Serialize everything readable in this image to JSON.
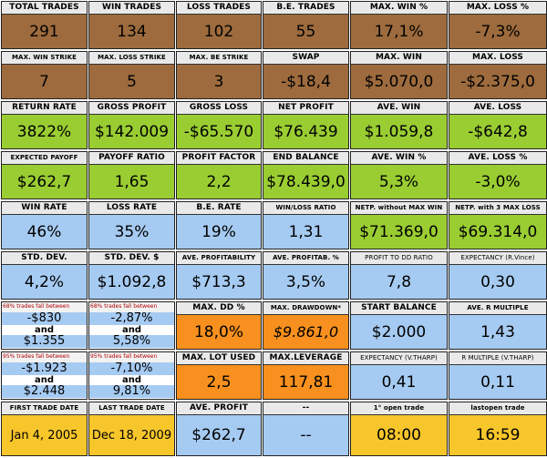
{
  "row1": [
    {
      "label": "TOTAL TRADES",
      "value": "291"
    },
    {
      "label": "WIN TRADES",
      "value": "134"
    },
    {
      "label": "LOSS TRADES",
      "value": "102"
    },
    {
      "label": "B.E. TRADES",
      "value": "55"
    },
    {
      "label": "MAX. WIN %",
      "value": "17,1%"
    },
    {
      "label": "MAX. LOSS %",
      "value": "-7,3%"
    }
  ],
  "row2": [
    {
      "label": "MAX. WIN STRIKE",
      "value": "7"
    },
    {
      "label": "MAX. LOSS STRIKE",
      "value": "5"
    },
    {
      "label": "MAX. BE STRIKE",
      "value": "3"
    },
    {
      "label": "SWAP",
      "value": "-$18,4"
    },
    {
      "label": "MAX. WIN",
      "value": "$5.070,0"
    },
    {
      "label": "MAX. LOSS",
      "value": "-$2.375,0"
    }
  ],
  "row3": [
    {
      "label": "RETURN RATE",
      "value": "3822%"
    },
    {
      "label": "GROSS PROFIT",
      "value": "$142.009"
    },
    {
      "label": "GROSS LOSS",
      "value": "-$65.570"
    },
    {
      "label": "NET PROFIT",
      "value": "$76.439"
    },
    {
      "label": "AVE. WIN",
      "value": "$1.059,8"
    },
    {
      "label": "AVE. LOSS",
      "value": "-$642,8"
    }
  ],
  "row4": [
    {
      "label": "EXPECTED PAYOFF",
      "value": "$262,7"
    },
    {
      "label": "PAYOFF RATIO",
      "value": "1,65"
    },
    {
      "label": "PROFIT FACTOR",
      "value": "2,2"
    },
    {
      "label": "END BALANCE",
      "value": "$78.439,0"
    },
    {
      "label": "AVE. WIN %",
      "value": "5,3%"
    },
    {
      "label": "AVE. LOSS %",
      "value": "-3,0%"
    }
  ],
  "row5": [
    {
      "label": "WIN RATE",
      "value": "46%"
    },
    {
      "label": "LOSS RATE",
      "value": "35%"
    },
    {
      "label": "B.E. RATE",
      "value": "19%"
    },
    {
      "label": "WIN/LOSS RATIO",
      "value": "1,31"
    },
    {
      "label": "NETP. without MAX WIN",
      "value": "$71.369,0"
    },
    {
      "label": "NETP. with 3 MAX LOSS",
      "value": "$69.314,0"
    }
  ],
  "row6": [
    {
      "label": "STD. DEV.",
      "value": "4,2%"
    },
    {
      "label": "STD. DEV. $",
      "value": "$1.092,8"
    },
    {
      "label": "AVE. PROFITABILITY",
      "value": "$713,3"
    },
    {
      "label": "AVE. PROFITAB. %",
      "value": "3,5%"
    },
    {
      "label": "PROFIT TO DD RATIO",
      "value": "7,8"
    },
    {
      "label": "EXPECTANCY (R.Vince)",
      "value": "0,30"
    }
  ],
  "range68": {
    "left": {
      "caption": "68% trades fall between",
      "low": "-$830",
      "and": "and",
      "high": "$1.355"
    },
    "right": {
      "caption": "68% trades fall between",
      "low": "-2,87%",
      "and": "and",
      "high": "5,58%"
    }
  },
  "range95": {
    "left": {
      "caption": "95% trades fall between",
      "low": "-$1.923",
      "and": "and",
      "high": "$2.448"
    },
    "right": {
      "caption": "95% trades fall between",
      "low": "-7,10%",
      "and": "and",
      "high": "9,81%"
    }
  },
  "row7": [
    {
      "label": "MAX. DD %",
      "value": "18,0%"
    },
    {
      "label": "MAX. DRAWDOWN*",
      "value": "$9.861,0"
    },
    {
      "label": "START BALANCE",
      "value": "$2.000"
    },
    {
      "label": "AVE. R MULTIPLE",
      "value": "1,43"
    }
  ],
  "row8": [
    {
      "label": "MAX. LOT USED",
      "value": "2,5"
    },
    {
      "label": "MAX.LEVERAGE",
      "value": "117,81"
    },
    {
      "label": "EXPECTANCY (V.THARP)",
      "value": "0,41"
    },
    {
      "label": "R MULTIPLE (V.THARP)",
      "value": "0,11"
    }
  ],
  "row9": [
    {
      "label": "FIRST TRADE DATE",
      "value": "Jan 4, 2005"
    },
    {
      "label": "LAST TRADE DATE",
      "value": "Dec 18, 2009"
    },
    {
      "label": "AVE. PROFIT",
      "value": "$262,7"
    },
    {
      "label": "--",
      "value": "--"
    },
    {
      "label": "1° open trade",
      "value": "08:00"
    },
    {
      "label": "lastopen trade",
      "value": "16:59"
    }
  ]
}
